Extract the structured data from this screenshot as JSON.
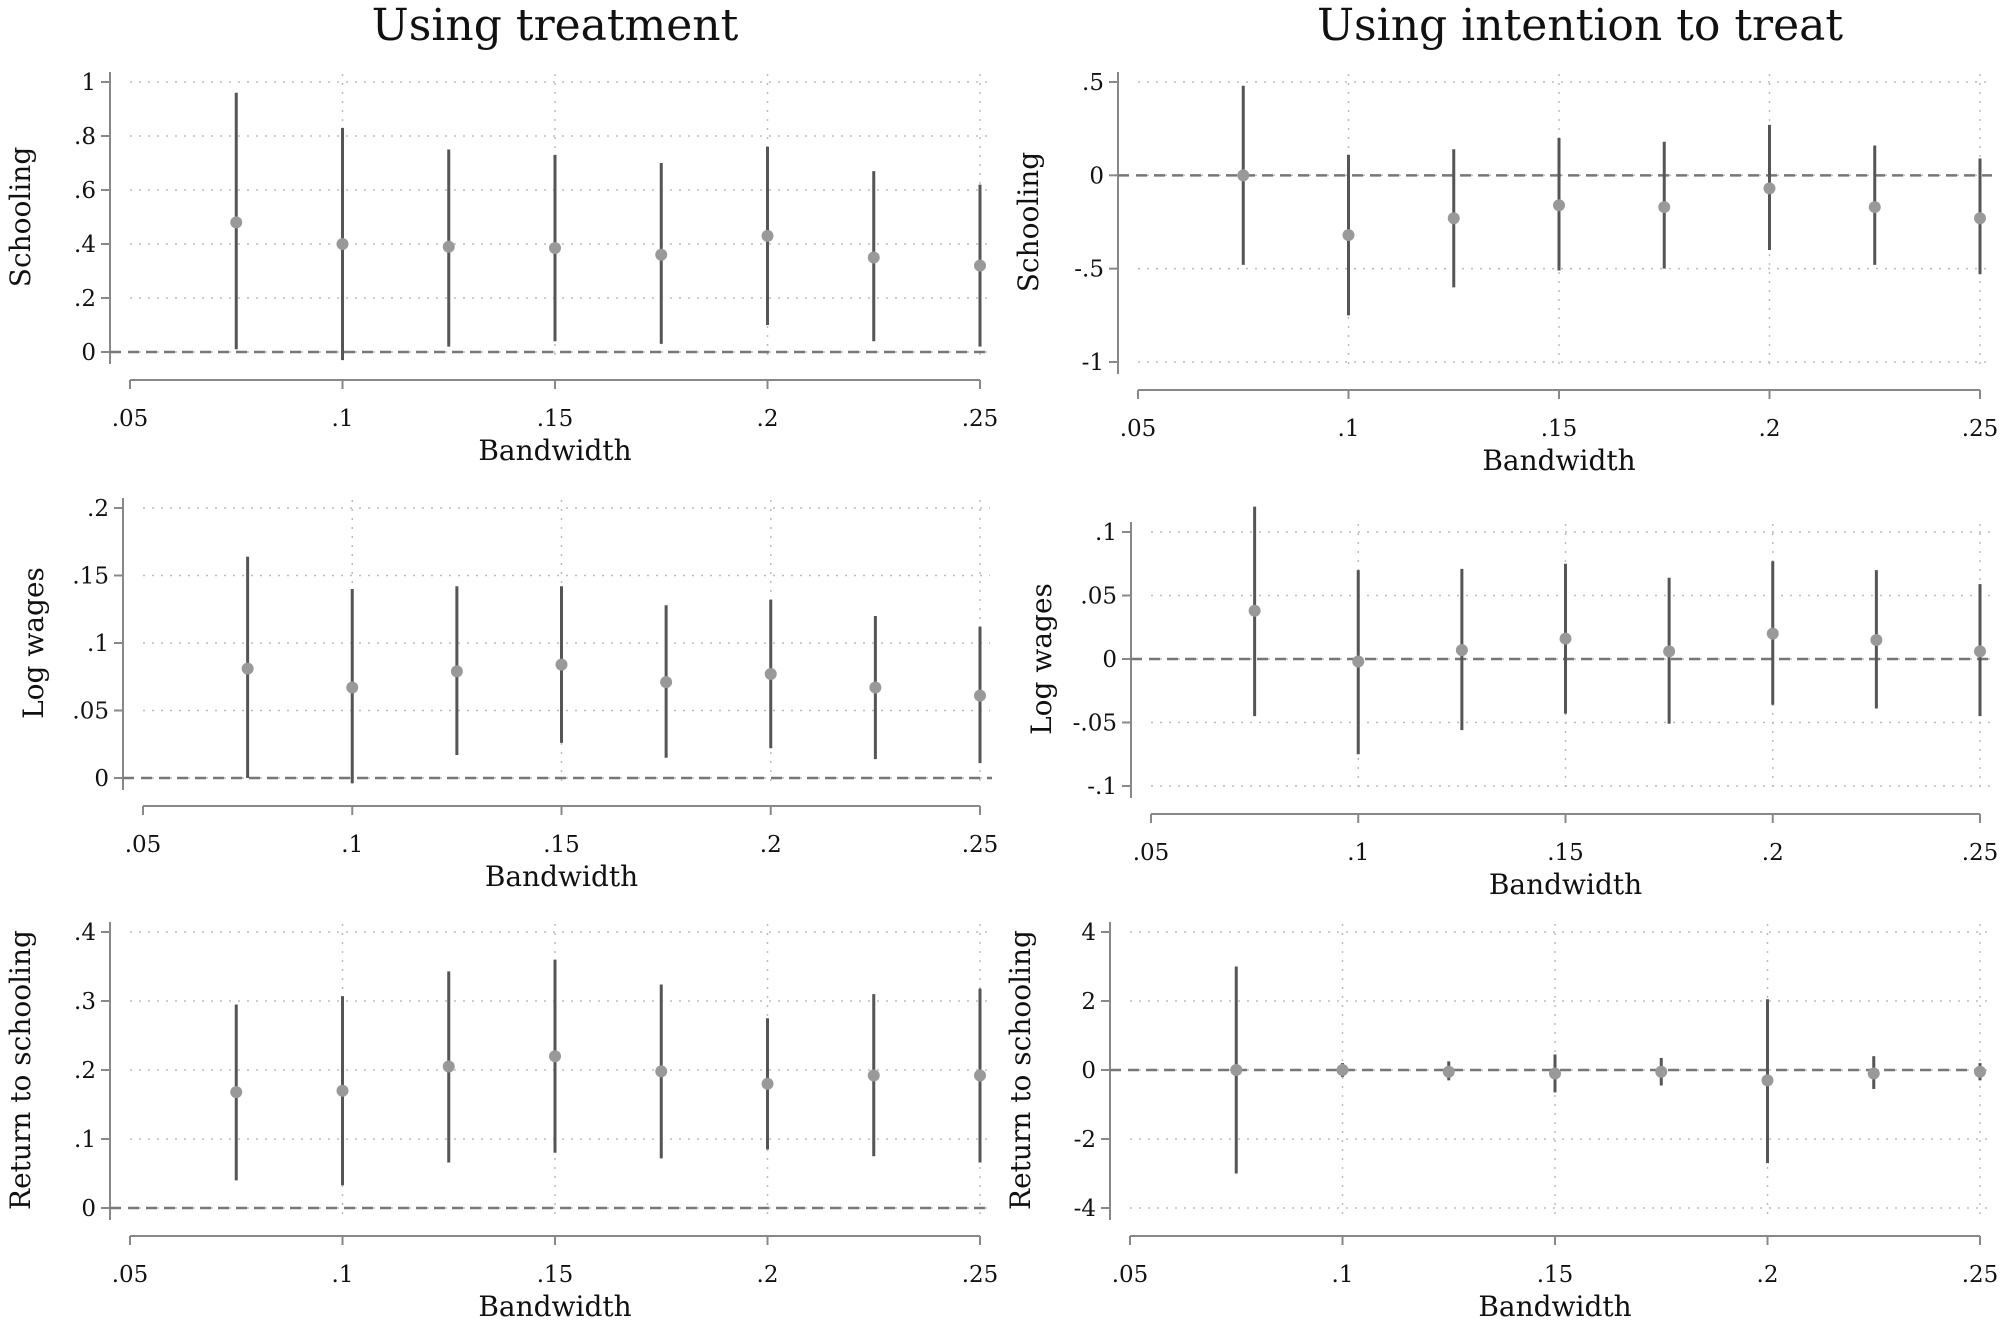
{
  "figure": {
    "column_titles": [
      "Using treatment",
      "Using intention to treat"
    ],
    "style": {
      "ci_color": "#555555",
      "point_color": "#999999",
      "grid_color": "#bbbbbb",
      "axis_color": "#888888",
      "reference_line_color": "#777777"
    }
  },
  "chart_data": [
    {
      "type": "scatter",
      "panel": "treatment-schooling",
      "xlabel": "Bandwidth",
      "ylabel": "Schooling",
      "xlim": [
        0.05,
        0.25
      ],
      "ylim": [
        0,
        1
      ],
      "xticks": [
        ".05",
        ".1",
        ".15",
        ".2",
        ".25"
      ],
      "yticks": [
        0,
        0.2,
        0.4,
        0.6,
        0.8,
        1
      ],
      "ytick_labels": [
        "0",
        ".2",
        ".4",
        ".6",
        ".8",
        "1"
      ],
      "grid": true,
      "reference_line": 0,
      "x": [
        0.075,
        0.1,
        0.125,
        0.15,
        0.175,
        0.2,
        0.225,
        0.25
      ],
      "estimate": [
        0.48,
        0.4,
        0.39,
        0.385,
        0.36,
        0.43,
        0.35,
        0.32
      ],
      "ci_low": [
        0.01,
        -0.03,
        0.02,
        0.04,
        0.03,
        0.1,
        0.04,
        0.02
      ],
      "ci_high": [
        0.96,
        0.83,
        0.75,
        0.73,
        0.7,
        0.76,
        0.67,
        0.62
      ]
    },
    {
      "type": "scatter",
      "panel": "itt-schooling",
      "xlabel": "Bandwidth",
      "ylabel": "Schooling",
      "xlim": [
        0.05,
        0.25
      ],
      "ylim": [
        -1,
        0.5
      ],
      "xticks": [
        ".05",
        ".1",
        ".15",
        ".2",
        ".25"
      ],
      "yticks": [
        -1,
        -0.5,
        0,
        0.5
      ],
      "ytick_labels": [
        "-1",
        "-.5",
        "0",
        ".5"
      ],
      "grid": true,
      "reference_line": 0,
      "x": [
        0.075,
        0.1,
        0.125,
        0.15,
        0.175,
        0.2,
        0.225,
        0.25
      ],
      "estimate": [
        0.0,
        -0.32,
        -0.23,
        -0.16,
        -0.17,
        -0.07,
        -0.17,
        -0.23
      ],
      "ci_low": [
        -0.48,
        -0.75,
        -0.6,
        -0.51,
        -0.5,
        -0.4,
        -0.48,
        -0.53
      ],
      "ci_high": [
        0.48,
        0.11,
        0.14,
        0.2,
        0.18,
        0.27,
        0.16,
        0.09
      ]
    },
    {
      "type": "scatter",
      "panel": "treatment-log-wages",
      "xlabel": "Bandwidth",
      "ylabel": "Log wages",
      "xlim": [
        0.05,
        0.25
      ],
      "ylim": [
        0,
        0.2
      ],
      "xticks": [
        ".05",
        ".1",
        ".15",
        ".2",
        ".25"
      ],
      "yticks": [
        0,
        0.05,
        0.1,
        0.15,
        0.2
      ],
      "ytick_labels": [
        "0",
        ".05",
        ".1",
        ".15",
        ".2"
      ],
      "grid": true,
      "reference_line": 0,
      "x": [
        0.075,
        0.1,
        0.125,
        0.15,
        0.175,
        0.2,
        0.225,
        0.25
      ],
      "estimate": [
        0.081,
        0.067,
        0.079,
        0.084,
        0.071,
        0.077,
        0.067,
        0.061
      ],
      "ci_low": [
        0.0,
        -0.004,
        0.017,
        0.026,
        0.015,
        0.022,
        0.014,
        0.011
      ],
      "ci_high": [
        0.164,
        0.14,
        0.142,
        0.142,
        0.128,
        0.132,
        0.12,
        0.112
      ]
    },
    {
      "type": "scatter",
      "panel": "itt-log-wages",
      "xlabel": "Bandwidth",
      "ylabel": "Log wages",
      "xlim": [
        0.05,
        0.25
      ],
      "ylim": [
        -0.1,
        0.1
      ],
      "xticks": [
        ".05",
        ".1",
        ".15",
        ".2",
        ".25"
      ],
      "yticks": [
        -0.1,
        -0.05,
        0,
        0.05,
        0.1
      ],
      "ytick_labels": [
        "-.1",
        "-.05",
        "0",
        ".05",
        ".1"
      ],
      "grid": true,
      "reference_line": 0,
      "x": [
        0.075,
        0.1,
        0.125,
        0.15,
        0.175,
        0.2,
        0.225,
        0.25
      ],
      "estimate": [
        0.038,
        -0.002,
        0.007,
        0.016,
        0.006,
        0.02,
        0.015,
        0.006
      ],
      "ci_low": [
        -0.045,
        -0.075,
        -0.056,
        -0.043,
        -0.051,
        -0.036,
        -0.039,
        -0.045
      ],
      "ci_high": [
        0.12,
        0.07,
        0.071,
        0.075,
        0.064,
        0.077,
        0.07,
        0.059
      ]
    },
    {
      "type": "scatter",
      "panel": "treatment-return-to-schooling",
      "xlabel": "Bandwidth",
      "ylabel": "Return to schooling",
      "xlim": [
        0.05,
        0.25
      ],
      "ylim": [
        0,
        0.4
      ],
      "xticks": [
        ".05",
        ".1",
        ".15",
        ".2",
        ".25"
      ],
      "yticks": [
        0,
        0.1,
        0.2,
        0.3,
        0.4
      ],
      "ytick_labels": [
        "0",
        ".1",
        ".2",
        ".3",
        ".4"
      ],
      "grid": true,
      "reference_line": 0,
      "x": [
        0.075,
        0.1,
        0.125,
        0.15,
        0.175,
        0.2,
        0.225,
        0.25
      ],
      "estimate": [
        0.168,
        0.17,
        0.205,
        0.22,
        0.198,
        0.18,
        0.192,
        0.192
      ],
      "ci_low": [
        0.04,
        0.033,
        0.066,
        0.08,
        0.072,
        0.085,
        0.075,
        0.066
      ],
      "ci_high": [
        0.295,
        0.307,
        0.343,
        0.36,
        0.324,
        0.275,
        0.31,
        0.318
      ]
    },
    {
      "type": "scatter",
      "panel": "itt-return-to-schooling",
      "xlabel": "Bandwidth",
      "ylabel": "Return to schooling",
      "xlim": [
        0.05,
        0.25
      ],
      "ylim": [
        -4,
        4
      ],
      "xticks": [
        ".05",
        ".1",
        ".15",
        ".2",
        ".25"
      ],
      "yticks": [
        -4,
        -2,
        0,
        2,
        4
      ],
      "ytick_labels": [
        "-4",
        "-2",
        "0",
        "2",
        "4"
      ],
      "grid": true,
      "reference_line": 0,
      "x": [
        0.075,
        0.1,
        0.125,
        0.15,
        0.175,
        0.2,
        0.225,
        0.25
      ],
      "estimate": [
        0.0,
        0.0,
        -0.05,
        -0.1,
        -0.05,
        -0.3,
        -0.1,
        -0.05
      ],
      "ci_low": [
        -3.0,
        -0.2,
        -0.3,
        -0.65,
        -0.45,
        -2.7,
        -0.55,
        -0.3
      ],
      "ci_high": [
        3.0,
        0.2,
        0.25,
        0.45,
        0.35,
        2.05,
        0.4,
        0.2
      ]
    }
  ]
}
